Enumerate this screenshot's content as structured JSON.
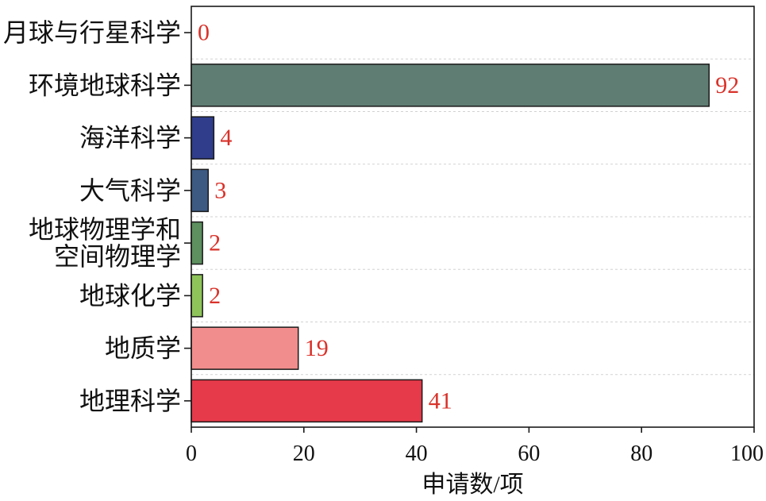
{
  "chart_data": {
    "type": "bar",
    "orientation": "horizontal",
    "xlabel": "申请数/项",
    "categories": [
      "月球与行星科学",
      "环境地球科学",
      "海洋科学",
      "大气科学",
      "地球物理学和空间物理学",
      "地球化学",
      "地质学",
      "地理科学"
    ],
    "values": [
      0,
      92,
      4,
      3,
      2,
      2,
      19,
      41
    ],
    "bar_colors": [
      null,
      "#5f7d73",
      "#2f3d8b",
      "#3c5a82",
      "#5d8f5f",
      "#8ec35a",
      "#f28d8d",
      "#e63a4a"
    ],
    "value_label_color": "#d9322a",
    "xlim": [
      0,
      100
    ],
    "xticks": [
      0,
      20,
      40,
      60,
      80,
      100
    ],
    "grid": true
  }
}
